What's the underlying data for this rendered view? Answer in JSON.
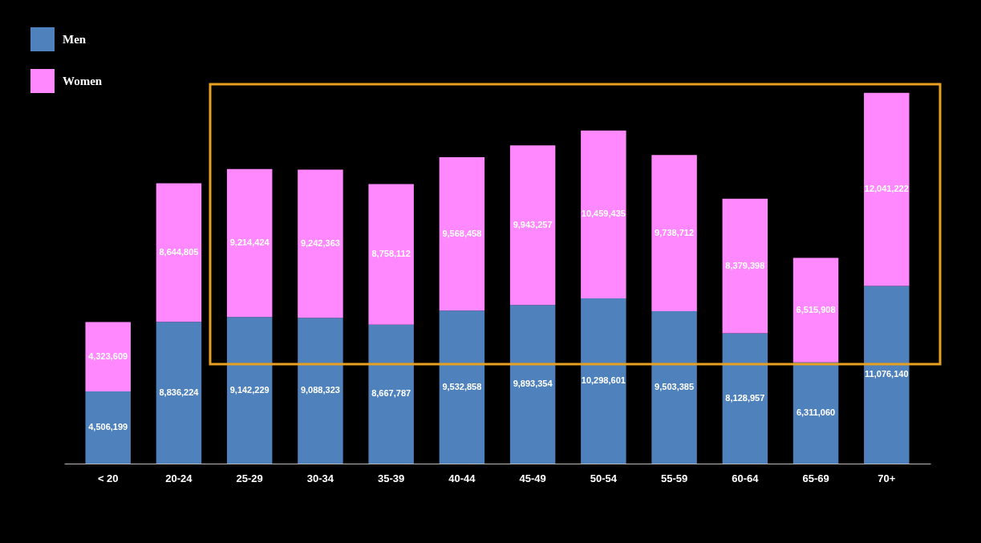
{
  "chart_data": {
    "type": "bar",
    "stacked": true,
    "legend": "top left",
    "categories": [
      "< 20",
      "20-24",
      "25-29",
      "30-34",
      "35-39",
      "40-44",
      "45-49",
      "50-54",
      "55-59",
      "60-64",
      "65-69",
      "70+"
    ],
    "series": [
      {
        "name": "Men",
        "color": "#4f81bd",
        "values": [
          4506199,
          8836224,
          9142229,
          9088323,
          8667787,
          9532858,
          9893354,
          10298601,
          9503385,
          8128957,
          6311060,
          11076140
        ],
        "value_labels": [
          "4,506,199",
          "8,836,224",
          "9,142,229",
          "9,088,323",
          "8,667,787",
          "9,532,858",
          "9,893,354",
          "10,298,601",
          "9,503,385",
          "8,128,957",
          "6,311,060",
          "11,076,140"
        ]
      },
      {
        "name": "Women",
        "color": "#ff88ff",
        "values": [
          4323609,
          8644805,
          9214424,
          9242363,
          8758112,
          9568458,
          9943257,
          10459435,
          9738712,
          8379398,
          6515908,
          12041222
        ],
        "value_labels": [
          "4,323,609",
          "8,644,805",
          "9,214,424",
          "9,242,363",
          "8,758,112",
          "9,568,458",
          "9,943,257",
          "10,459,435",
          "9,738,712",
          "8,379,398",
          "6,515,908",
          "12,041,222"
        ]
      }
    ]
  }
}
